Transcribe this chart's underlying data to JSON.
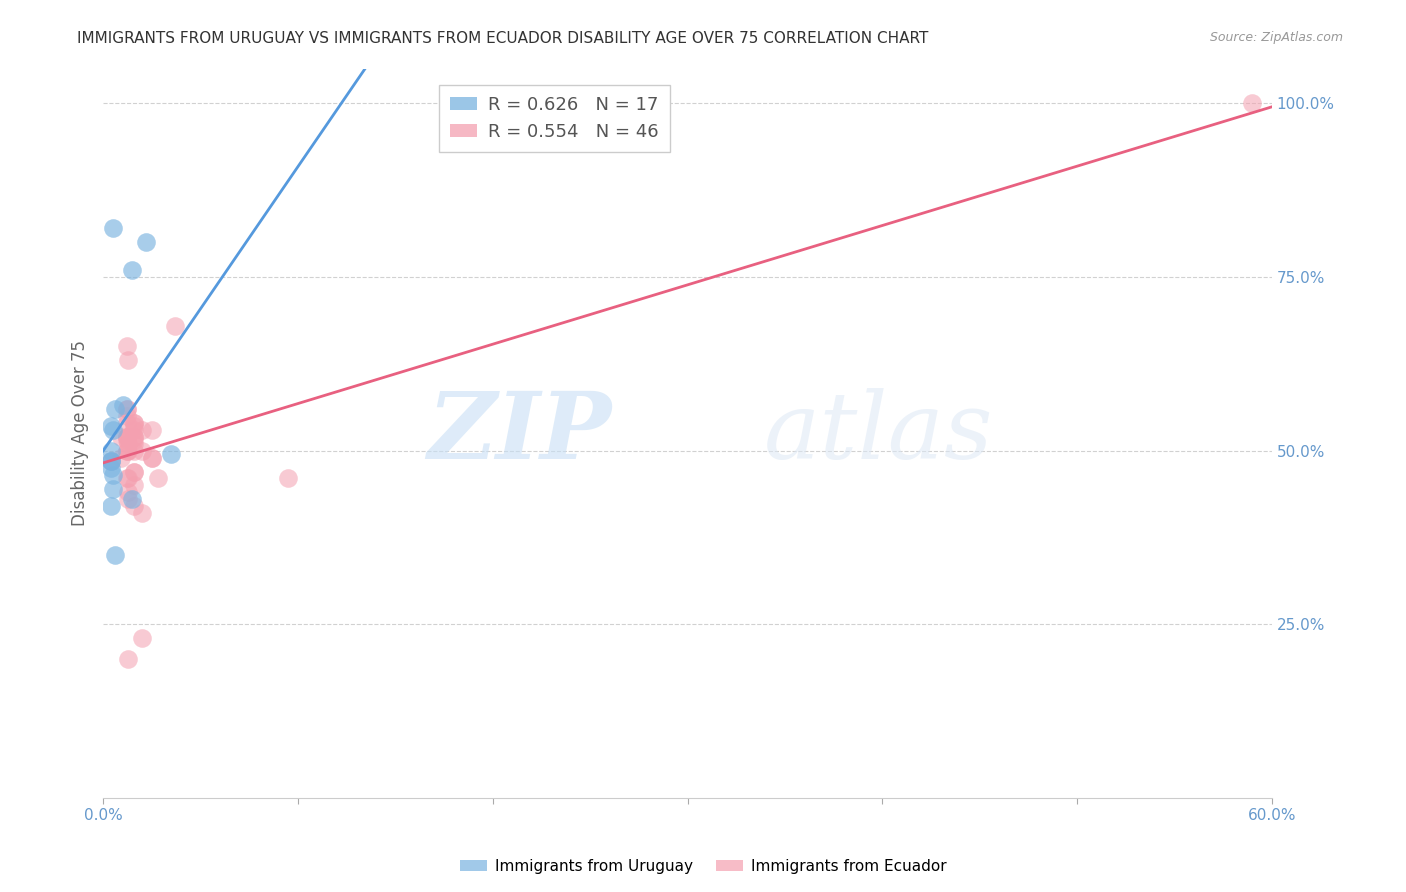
{
  "title": "IMMIGRANTS FROM URUGUAY VS IMMIGRANTS FROM ECUADOR DISABILITY AGE OVER 75 CORRELATION CHART",
  "source": "Source: ZipAtlas.com",
  "ylabel": "Disability Age Over 75",
  "watermark_zip": "ZIP",
  "watermark_atlas": "atlas",
  "legend": [
    {
      "label": "Immigrants from Uruguay",
      "R": 0.626,
      "N": 17,
      "color": "#7ab3e0"
    },
    {
      "label": "Immigrants from Ecuador",
      "R": 0.554,
      "N": 46,
      "color": "#f4a0b0"
    }
  ],
  "uruguay_x": [
    0.01,
    0.005,
    0.015,
    0.004,
    0.004,
    0.004,
    0.004,
    0.004,
    0.005,
    0.005,
    0.015,
    0.022,
    0.006,
    0.004,
    0.006,
    0.035,
    0.005
  ],
  "uruguay_y": [
    0.565,
    0.82,
    0.76,
    0.535,
    0.5,
    0.485,
    0.475,
    0.485,
    0.465,
    0.445,
    0.43,
    0.8,
    0.56,
    0.42,
    0.35,
    0.495,
    0.53
  ],
  "ecuador_x": [
    0.004,
    0.012,
    0.012,
    0.016,
    0.016,
    0.013,
    0.009,
    0.009,
    0.012,
    0.013,
    0.012,
    0.016,
    0.02,
    0.025,
    0.025,
    0.016,
    0.012,
    0.012,
    0.013,
    0.012,
    0.016,
    0.016,
    0.016,
    0.012,
    0.02,
    0.012,
    0.025,
    0.013,
    0.016,
    0.012,
    0.013,
    0.016,
    0.037,
    0.016,
    0.012,
    0.02,
    0.013,
    0.016,
    0.016,
    0.095,
    0.02,
    0.012,
    0.013,
    0.016,
    0.028,
    0.59
  ],
  "ecuador_y": [
    0.485,
    0.55,
    0.52,
    0.515,
    0.54,
    0.5,
    0.49,
    0.52,
    0.56,
    0.63,
    0.65,
    0.535,
    0.53,
    0.53,
    0.49,
    0.52,
    0.52,
    0.515,
    0.51,
    0.5,
    0.51,
    0.47,
    0.53,
    0.54,
    0.5,
    0.5,
    0.49,
    0.46,
    0.54,
    0.56,
    0.44,
    0.42,
    0.68,
    0.5,
    0.52,
    0.23,
    0.2,
    0.52,
    0.47,
    0.46,
    0.41,
    0.46,
    0.43,
    0.45,
    0.46,
    1.0
  ],
  "xlim": [
    0.0,
    0.6
  ],
  "ylim": [
    0.0,
    1.05
  ],
  "yticks": [
    0.0,
    0.25,
    0.5,
    0.75,
    1.0
  ],
  "ytick_labels": [
    "",
    "25.0%",
    "50.0%",
    "75.0%",
    "100.0%"
  ],
  "xticks": [
    0.0,
    0.1,
    0.2,
    0.3,
    0.4,
    0.5,
    0.6
  ],
  "xtick_labels": [
    "0.0%",
    "",
    "",
    "",
    "",
    "",
    "60.0%"
  ],
  "bg_color": "#ffffff",
  "grid_color": "#cccccc",
  "title_color": "#333333",
  "tick_color": "#6699cc",
  "line_ury_color": "#5599dd",
  "line_ecu_color": "#e86080"
}
